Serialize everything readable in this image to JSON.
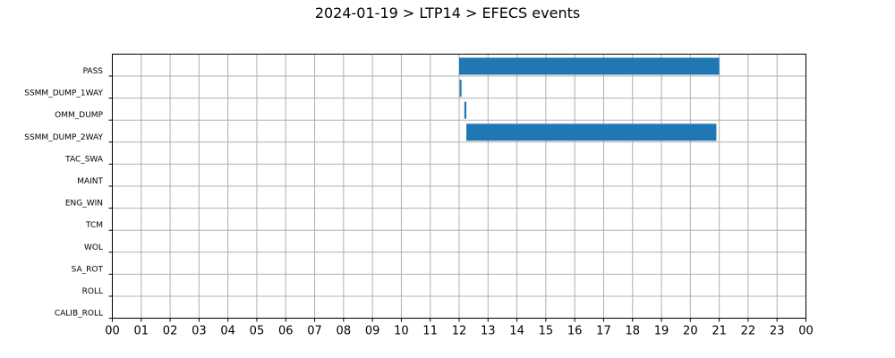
{
  "chart_data": {
    "type": "bar",
    "orientation": "horizontal-timeline",
    "title": "2024-01-19 > LTP14 > EFECS events",
    "xlabel": "",
    "ylabel": "",
    "x_unit": "hour",
    "xlim": [
      0,
      24
    ],
    "x_tick_labels": [
      "00",
      "01",
      "02",
      "03",
      "04",
      "05",
      "06",
      "07",
      "08",
      "09",
      "10",
      "11",
      "12",
      "13",
      "14",
      "15",
      "16",
      "17",
      "18",
      "19",
      "20",
      "21",
      "22",
      "23",
      "00"
    ],
    "categories": [
      "PASS",
      "SSMM_DUMP_1WAY",
      "OMM_DUMP",
      "SSMM_DUMP_2WAY",
      "TAC_SWA",
      "MAINT",
      "ENG_WIN",
      "TCM",
      "WOL",
      "SA_ROT",
      "ROLL",
      "CALIB_ROLL"
    ],
    "events": [
      {
        "category": "PASS",
        "start": 12.0,
        "end": 21.0
      },
      {
        "category": "SSMM_DUMP_1WAY",
        "start": 12.02,
        "end": 12.08
      },
      {
        "category": "OMM_DUMP",
        "start": 12.18,
        "end": 12.25
      },
      {
        "category": "SSMM_DUMP_2WAY",
        "start": 12.25,
        "end": 20.9
      }
    ],
    "grid": true,
    "bar_color": "#1f77b4"
  }
}
